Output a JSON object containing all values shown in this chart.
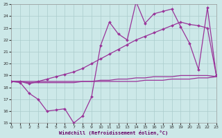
{
  "xlabel": "Windchill (Refroidissement éolien,°C)",
  "x_values": [
    0,
    1,
    2,
    3,
    4,
    5,
    6,
    7,
    8,
    9,
    10,
    11,
    12,
    13,
    14,
    15,
    16,
    17,
    18,
    19,
    20,
    21,
    22,
    23
  ],
  "ylim": [
    15,
    25
  ],
  "xlim": [
    -0.5,
    23.5
  ],
  "line_color": "#993399",
  "bg_color": "#cce8e8",
  "grid_color": "#aacccc",
  "s1_jagged": [
    18.5,
    18.4,
    17.5,
    17.0,
    16.0,
    16.1,
    16.2,
    15.0,
    15.6,
    17.2,
    21.5,
    23.5,
    22.5,
    22.0,
    25.2,
    23.4,
    24.2,
    24.4,
    24.6,
    23.1,
    21.7,
    19.5,
    24.7,
    19.0
  ],
  "s2_upper_diag": [
    18.5,
    18.5,
    18.3,
    18.5,
    18.7,
    18.9,
    19.1,
    19.3,
    19.6,
    20.0,
    20.4,
    20.8,
    21.2,
    21.6,
    22.0,
    22.3,
    22.6,
    22.9,
    23.2,
    23.5,
    23.3,
    23.2,
    23.0,
    19.0
  ],
  "s3_mid_diag": [
    18.5,
    18.5,
    18.4,
    18.4,
    18.4,
    18.4,
    18.4,
    18.4,
    18.5,
    18.5,
    18.6,
    18.6,
    18.7,
    18.7,
    18.8,
    18.8,
    18.9,
    18.9,
    18.9,
    19.0,
    19.0,
    19.0,
    19.0,
    18.9
  ],
  "s4_flat": [
    18.5,
    18.5,
    18.5,
    18.5,
    18.5,
    18.5,
    18.5,
    18.5,
    18.5,
    18.5,
    18.5,
    18.5,
    18.5,
    18.5,
    18.5,
    18.6,
    18.6,
    18.6,
    18.7,
    18.7,
    18.7,
    18.8,
    18.8,
    18.9
  ]
}
